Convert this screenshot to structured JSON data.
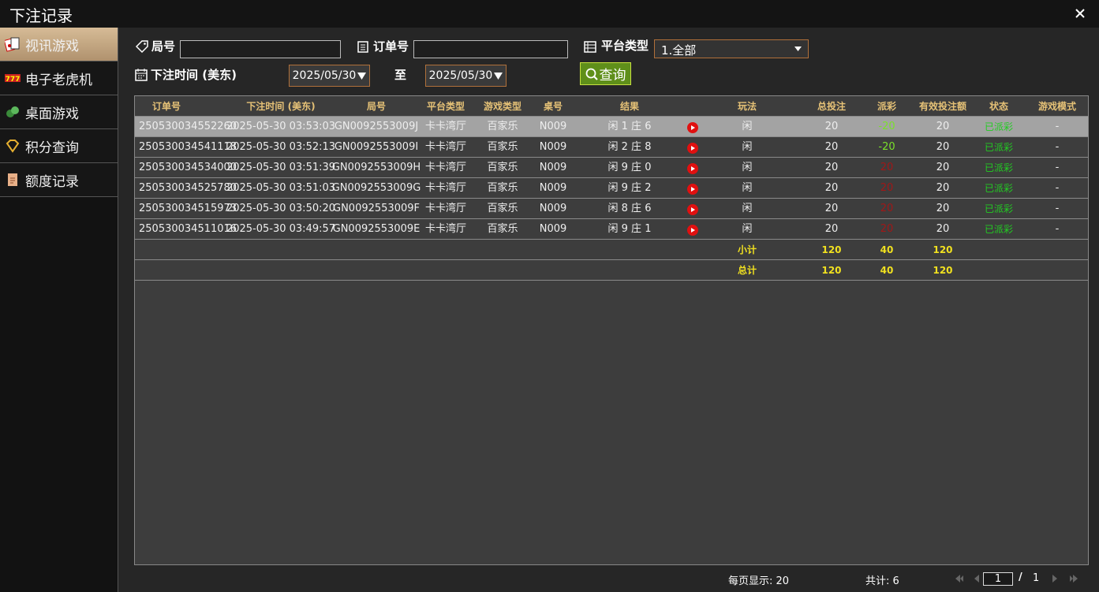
{
  "header": {
    "title": "下注记录"
  },
  "sidebar": {
    "items": [
      "视讯游戏",
      "电子老虎机",
      "桌面游戏",
      "积分查询",
      "额度记录"
    ],
    "active": 0
  },
  "filters": {
    "round_label": "局号",
    "order_label": "订单号",
    "platform_label": "平台类型",
    "platform_value": "1.全部",
    "time_label": "下注时间 (美东)",
    "date_from": "2025/05/30",
    "to_label": "至",
    "date_to": "2025/05/30",
    "search_button": "查询"
  },
  "table": {
    "columns": [
      "订单号",
      "下注时间 (美东)",
      "局号",
      "平台类型",
      "游戏类型",
      "桌号",
      "结果",
      "玩法",
      "总投注",
      "派彩",
      "有效投注额",
      "状态",
      "游戏模式"
    ],
    "selected_row": 0,
    "rows": [
      [
        "250530034552260",
        "2025-05-30 03:53:03",
        "GN0092553009J",
        "卡卡湾厅",
        "百家乐",
        "N009",
        "闲 1 庄 6",
        "闲",
        "20",
        "-20",
        "20",
        "已派彩",
        "-"
      ],
      [
        "250530034541118",
        "2025-05-30 03:52:13",
        "GN0092553009I",
        "卡卡湾厅",
        "百家乐",
        "N009",
        "闲 2 庄 8",
        "闲",
        "20",
        "-20",
        "20",
        "已派彩",
        "-"
      ],
      [
        "250530034534000",
        "2025-05-30 03:51:39",
        "GN0092553009H",
        "卡卡湾厅",
        "百家乐",
        "N009",
        "闲 9 庄 0",
        "闲",
        "20",
        "20",
        "20",
        "已派彩",
        "-"
      ],
      [
        "250530034525780",
        "2025-05-30 03:51:03",
        "GN0092553009G",
        "卡卡湾厅",
        "百家乐",
        "N009",
        "闲 9 庄 2",
        "闲",
        "20",
        "20",
        "20",
        "已派彩",
        "-"
      ],
      [
        "250530034515973",
        "2025-05-30 03:50:20",
        "GN0092553009F",
        "卡卡湾厅",
        "百家乐",
        "N009",
        "闲 8 庄 6",
        "闲",
        "20",
        "20",
        "20",
        "已派彩",
        "-"
      ],
      [
        "250530034511016",
        "2025-05-30 03:49:57",
        "GN0092553009E",
        "卡卡湾厅",
        "百家乐",
        "N009",
        "闲 9 庄 1",
        "闲",
        "20",
        "20",
        "20",
        "已派彩",
        "-"
      ]
    ],
    "summary": [
      {
        "label": "小计",
        "total_bet": "120",
        "payout": "40",
        "valid_bet": "120"
      },
      {
        "label": "总计",
        "total_bet": "120",
        "payout": "40",
        "valid_bet": "120"
      }
    ]
  },
  "footer": {
    "per_page": "每页显示: 20",
    "total": "共计: 6",
    "page": "1",
    "separator": "/",
    "pages": "1"
  }
}
